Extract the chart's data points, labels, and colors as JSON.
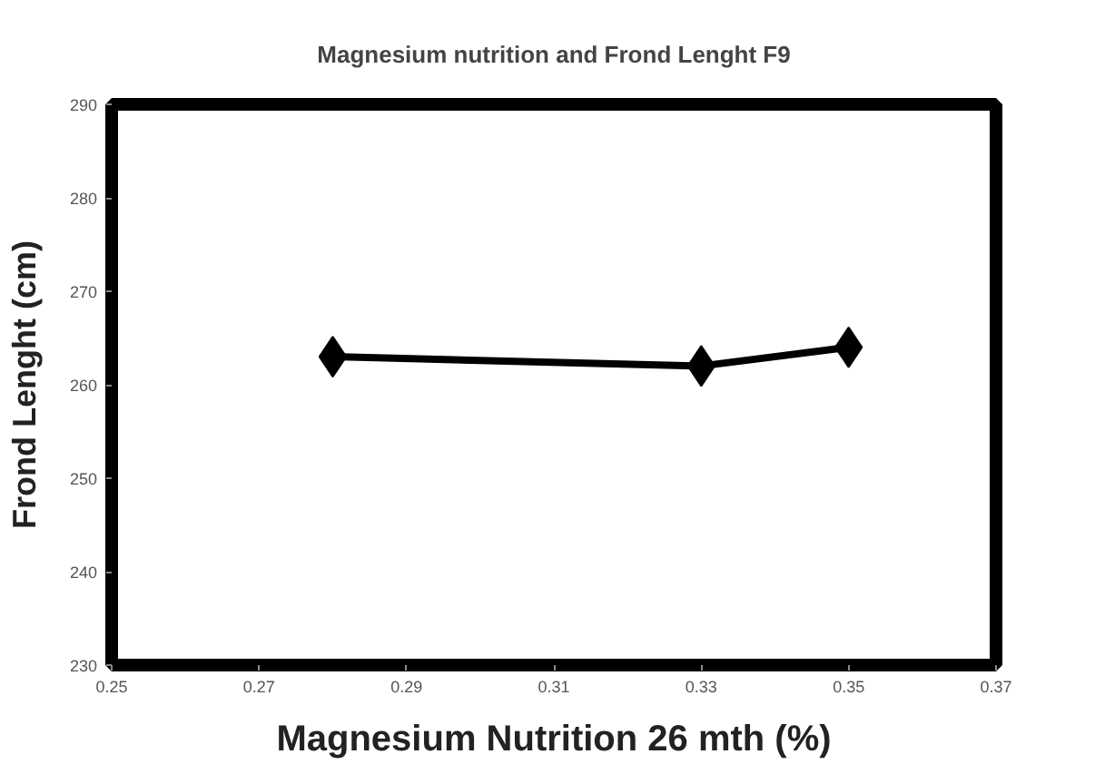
{
  "chart_data": {
    "type": "line",
    "title": "Magnesium nutrition and Frond Lenght F9",
    "xlabel": "Magnesium Nutrition 26 mth (%)",
    "ylabel": "Frond Lenght (cm)",
    "x": [
      0.28,
      0.33,
      0.35
    ],
    "series": [
      {
        "color": "#000000",
        "values": [
          263,
          262,
          264
        ]
      }
    ],
    "xlim": [
      0.25,
      0.37
    ],
    "xticks": [
      0.25,
      0.27,
      0.29,
      0.31,
      0.33,
      0.35,
      0.37
    ],
    "ylim": [
      230,
      290
    ],
    "yticks": [
      230,
      240,
      250,
      260,
      270,
      280,
      290
    ],
    "grid": false,
    "marker": "diamond",
    "line_style": "solid"
  }
}
